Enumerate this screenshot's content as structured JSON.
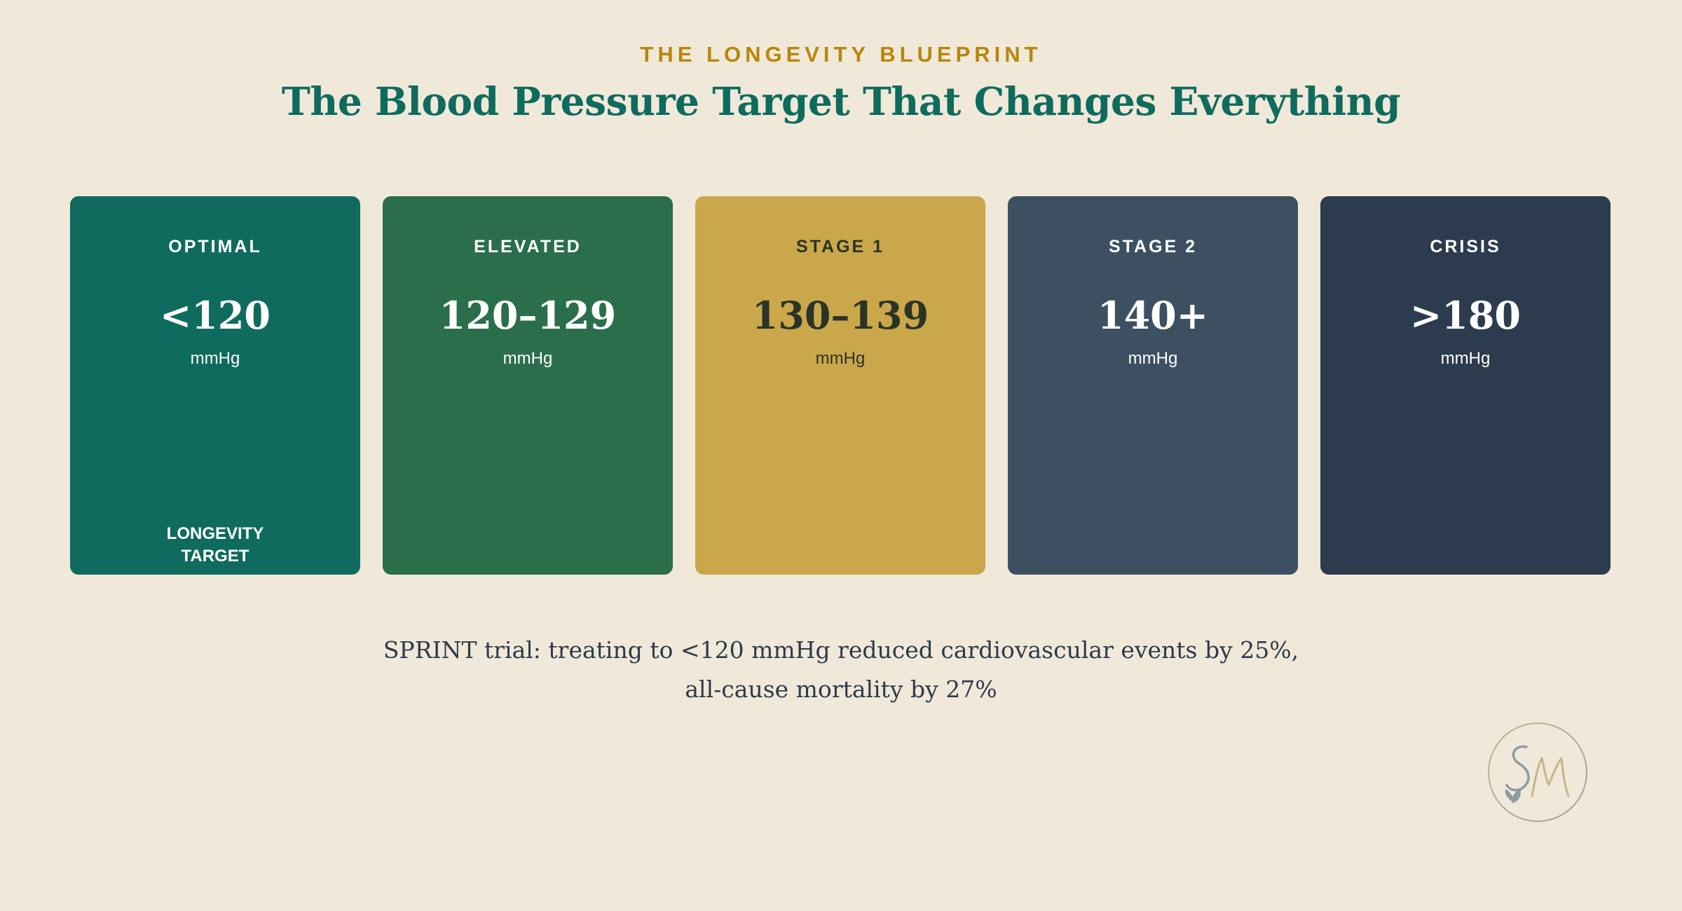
{
  "header": {
    "eyebrow": "THE LONGEVITY BLUEPRINT",
    "title": "The Blood Pressure Target That Changes Everything"
  },
  "cards": [
    {
      "label": "OPTIMAL",
      "value": "<120",
      "unit": "mmHg",
      "note_line1": "LONGEVITY",
      "note_line2": "TARGET",
      "color": "#0f6b5e",
      "text_color": "#ffffff"
    },
    {
      "label": "ELEVATED",
      "value": "120–129",
      "unit": "mmHg",
      "color": "#2b6e4b",
      "text_color": "#ffffff"
    },
    {
      "label": "STAGE 1",
      "value": "130–139",
      "unit": "mmHg",
      "color": "#c9a74a",
      "text_color": "#2b3327"
    },
    {
      "label": "STAGE 2",
      "value": "140+",
      "unit": "mmHg",
      "color": "#3d5062",
      "text_color": "#ffffff"
    },
    {
      "label": "CRISIS",
      "value": ">180",
      "unit": "mmHg",
      "color": "#2d3b4f",
      "text_color": "#ffffff"
    }
  ],
  "caption": {
    "line1": "SPRINT trial: treating to <120 mmHg reduced cardiovascular events by 25%,",
    "line2": "all-cause mortality by 27%"
  },
  "logo": {
    "monogram": "SM",
    "icon": "leaf-icon"
  },
  "colors": {
    "background": "#f0e9d9",
    "eyebrow": "#b8860b",
    "title": "#0e6b5e",
    "caption": "#2e3a4a"
  }
}
